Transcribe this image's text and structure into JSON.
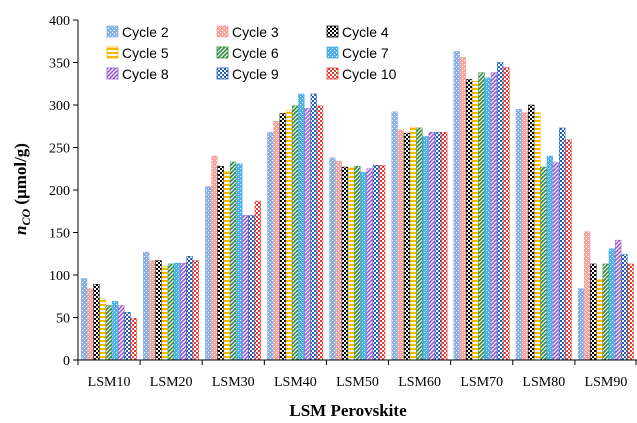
{
  "chart_data": {
    "type": "bar",
    "xlabel": "LSM Perovskite",
    "ylabel_main": "n",
    "ylabel_sub": "CO",
    "ylabel_units": " (μmol/g)",
    "ylim": [
      0,
      400
    ],
    "yticks": [
      0,
      50,
      100,
      150,
      200,
      250,
      300,
      350,
      400
    ],
    "legend_position": "top-left",
    "grid": false,
    "categories": [
      "LSM10",
      "LSM20",
      "LSM30",
      "LSM40",
      "LSM50",
      "LSM60",
      "LSM70",
      "LSM80",
      "LSM90"
    ],
    "series": [
      {
        "name": "Cycle 2",
        "color": "#8db3e2",
        "pattern": "dots",
        "values": [
          96,
          127,
          204,
          268,
          238,
          292,
          363,
          295,
          84
        ]
      },
      {
        "name": "Cycle 3",
        "color": "#f4a6a0",
        "pattern": "dots",
        "values": [
          84,
          117,
          240,
          281,
          234,
          271,
          356,
          291,
          151
        ]
      },
      {
        "name": "Cycle 4",
        "color": "#000000",
        "pattern": "checker",
        "values": [
          89,
          117,
          228,
          290,
          227,
          267,
          330,
          300,
          113
        ]
      },
      {
        "name": "Cycle 5",
        "color": "#f5b800",
        "pattern": "hstripe",
        "values": [
          72,
          110,
          222,
          294,
          226,
          274,
          328,
          291,
          95
        ]
      },
      {
        "name": "Cycle 6",
        "color": "#2e8b3e",
        "pattern": "diagonal",
        "values": [
          64,
          113,
          233,
          299,
          228,
          273,
          338,
          227,
          113
        ]
      },
      {
        "name": "Cycle 7",
        "color": "#4fb3e8",
        "pattern": "dots",
        "values": [
          69,
          114,
          231,
          313,
          221,
          263,
          332,
          240,
          131
        ]
      },
      {
        "name": "Cycle 8",
        "color": "#9b59d0",
        "pattern": "diagonal",
        "values": [
          64,
          114,
          170,
          296,
          225,
          268,
          338,
          232,
          141
        ]
      },
      {
        "name": "Cycle 9",
        "color": "#1f5fbf",
        "pattern": "checker",
        "values": [
          56,
          122,
          170,
          313,
          229,
          268,
          350,
          273,
          124
        ]
      },
      {
        "name": "Cycle 10",
        "color": "#e8392e",
        "pattern": "checker",
        "values": [
          49,
          117,
          187,
          299,
          229,
          268,
          344,
          259,
          113
        ]
      }
    ]
  }
}
